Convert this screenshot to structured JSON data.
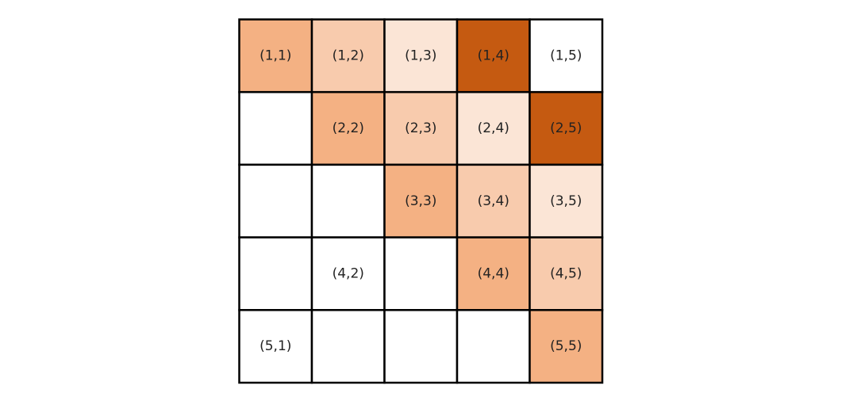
{
  "grid": {
    "rows": [
      [
        {
          "label": "(1,1)",
          "color": "#f4b183"
        },
        {
          "label": "(1,2)",
          "color": "#f8cbad"
        },
        {
          "label": "(1,3)",
          "color": "#fbe5d6"
        },
        {
          "label": "(1,4)",
          "color": "#c55a11"
        },
        {
          "label": "(1,5)",
          "color": "#ffffff"
        }
      ],
      [
        {
          "label": null,
          "color": "#ffffff"
        },
        {
          "label": "(2,2)",
          "color": "#f4b183"
        },
        {
          "label": "(2,3)",
          "color": "#f8cbad"
        },
        {
          "label": "(2,4)",
          "color": "#fbe5d6"
        },
        {
          "label": "(2,5)",
          "color": "#c55a11"
        }
      ],
      [
        {
          "label": null,
          "color": "#ffffff"
        },
        {
          "label": null,
          "color": "#ffffff"
        },
        {
          "label": "(3,3)",
          "color": "#f4b183"
        },
        {
          "label": "(3,4)",
          "color": "#f8cbad"
        },
        {
          "label": "(3,5)",
          "color": "#fbe5d6"
        }
      ],
      [
        {
          "label": null,
          "color": "#ffffff"
        },
        {
          "label": "(4,2)",
          "color": "#ffffff"
        },
        {
          "label": null,
          "color": "#ffffff"
        },
        {
          "label": "(4,4)",
          "color": "#f4b183"
        },
        {
          "label": "(4,5)",
          "color": "#f8cbad"
        }
      ],
      [
        {
          "label": "(5,1)",
          "color": "#ffffff"
        },
        {
          "label": null,
          "color": "#ffffff"
        },
        {
          "label": null,
          "color": "#ffffff"
        },
        {
          "label": null,
          "color": "#ffffff"
        },
        {
          "label": "(5,5)",
          "color": "#f4b183"
        }
      ]
    ]
  }
}
